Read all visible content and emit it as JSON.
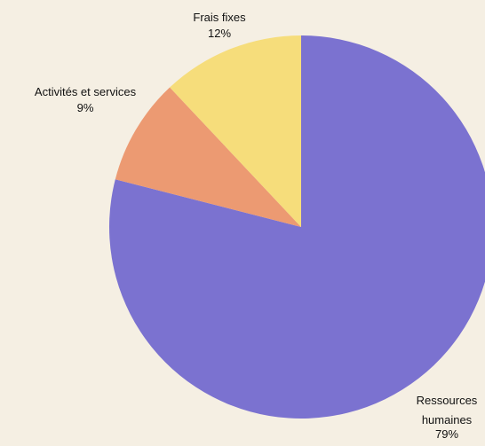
{
  "chart_data": {
    "type": "pie",
    "title": "",
    "slices": [
      {
        "name": "Ressources humaines",
        "label_lines": [
          "Ressources",
          "humaines"
        ],
        "value": 79,
        "value_label": "79%",
        "color": "#7b72d0"
      },
      {
        "name": "Activités et services",
        "label_lines": [
          "Activités et services"
        ],
        "value": 9,
        "value_label": "9%",
        "color": "#ec9a72"
      },
      {
        "name": "Frais fixes",
        "label_lines": [
          "Frais fixes"
        ],
        "value": 12,
        "value_label": "12%",
        "color": "#f6dd7b"
      }
    ],
    "start_angle_deg": 0,
    "direction": "clockwise",
    "legend": "none",
    "background": "#f5efe3"
  }
}
